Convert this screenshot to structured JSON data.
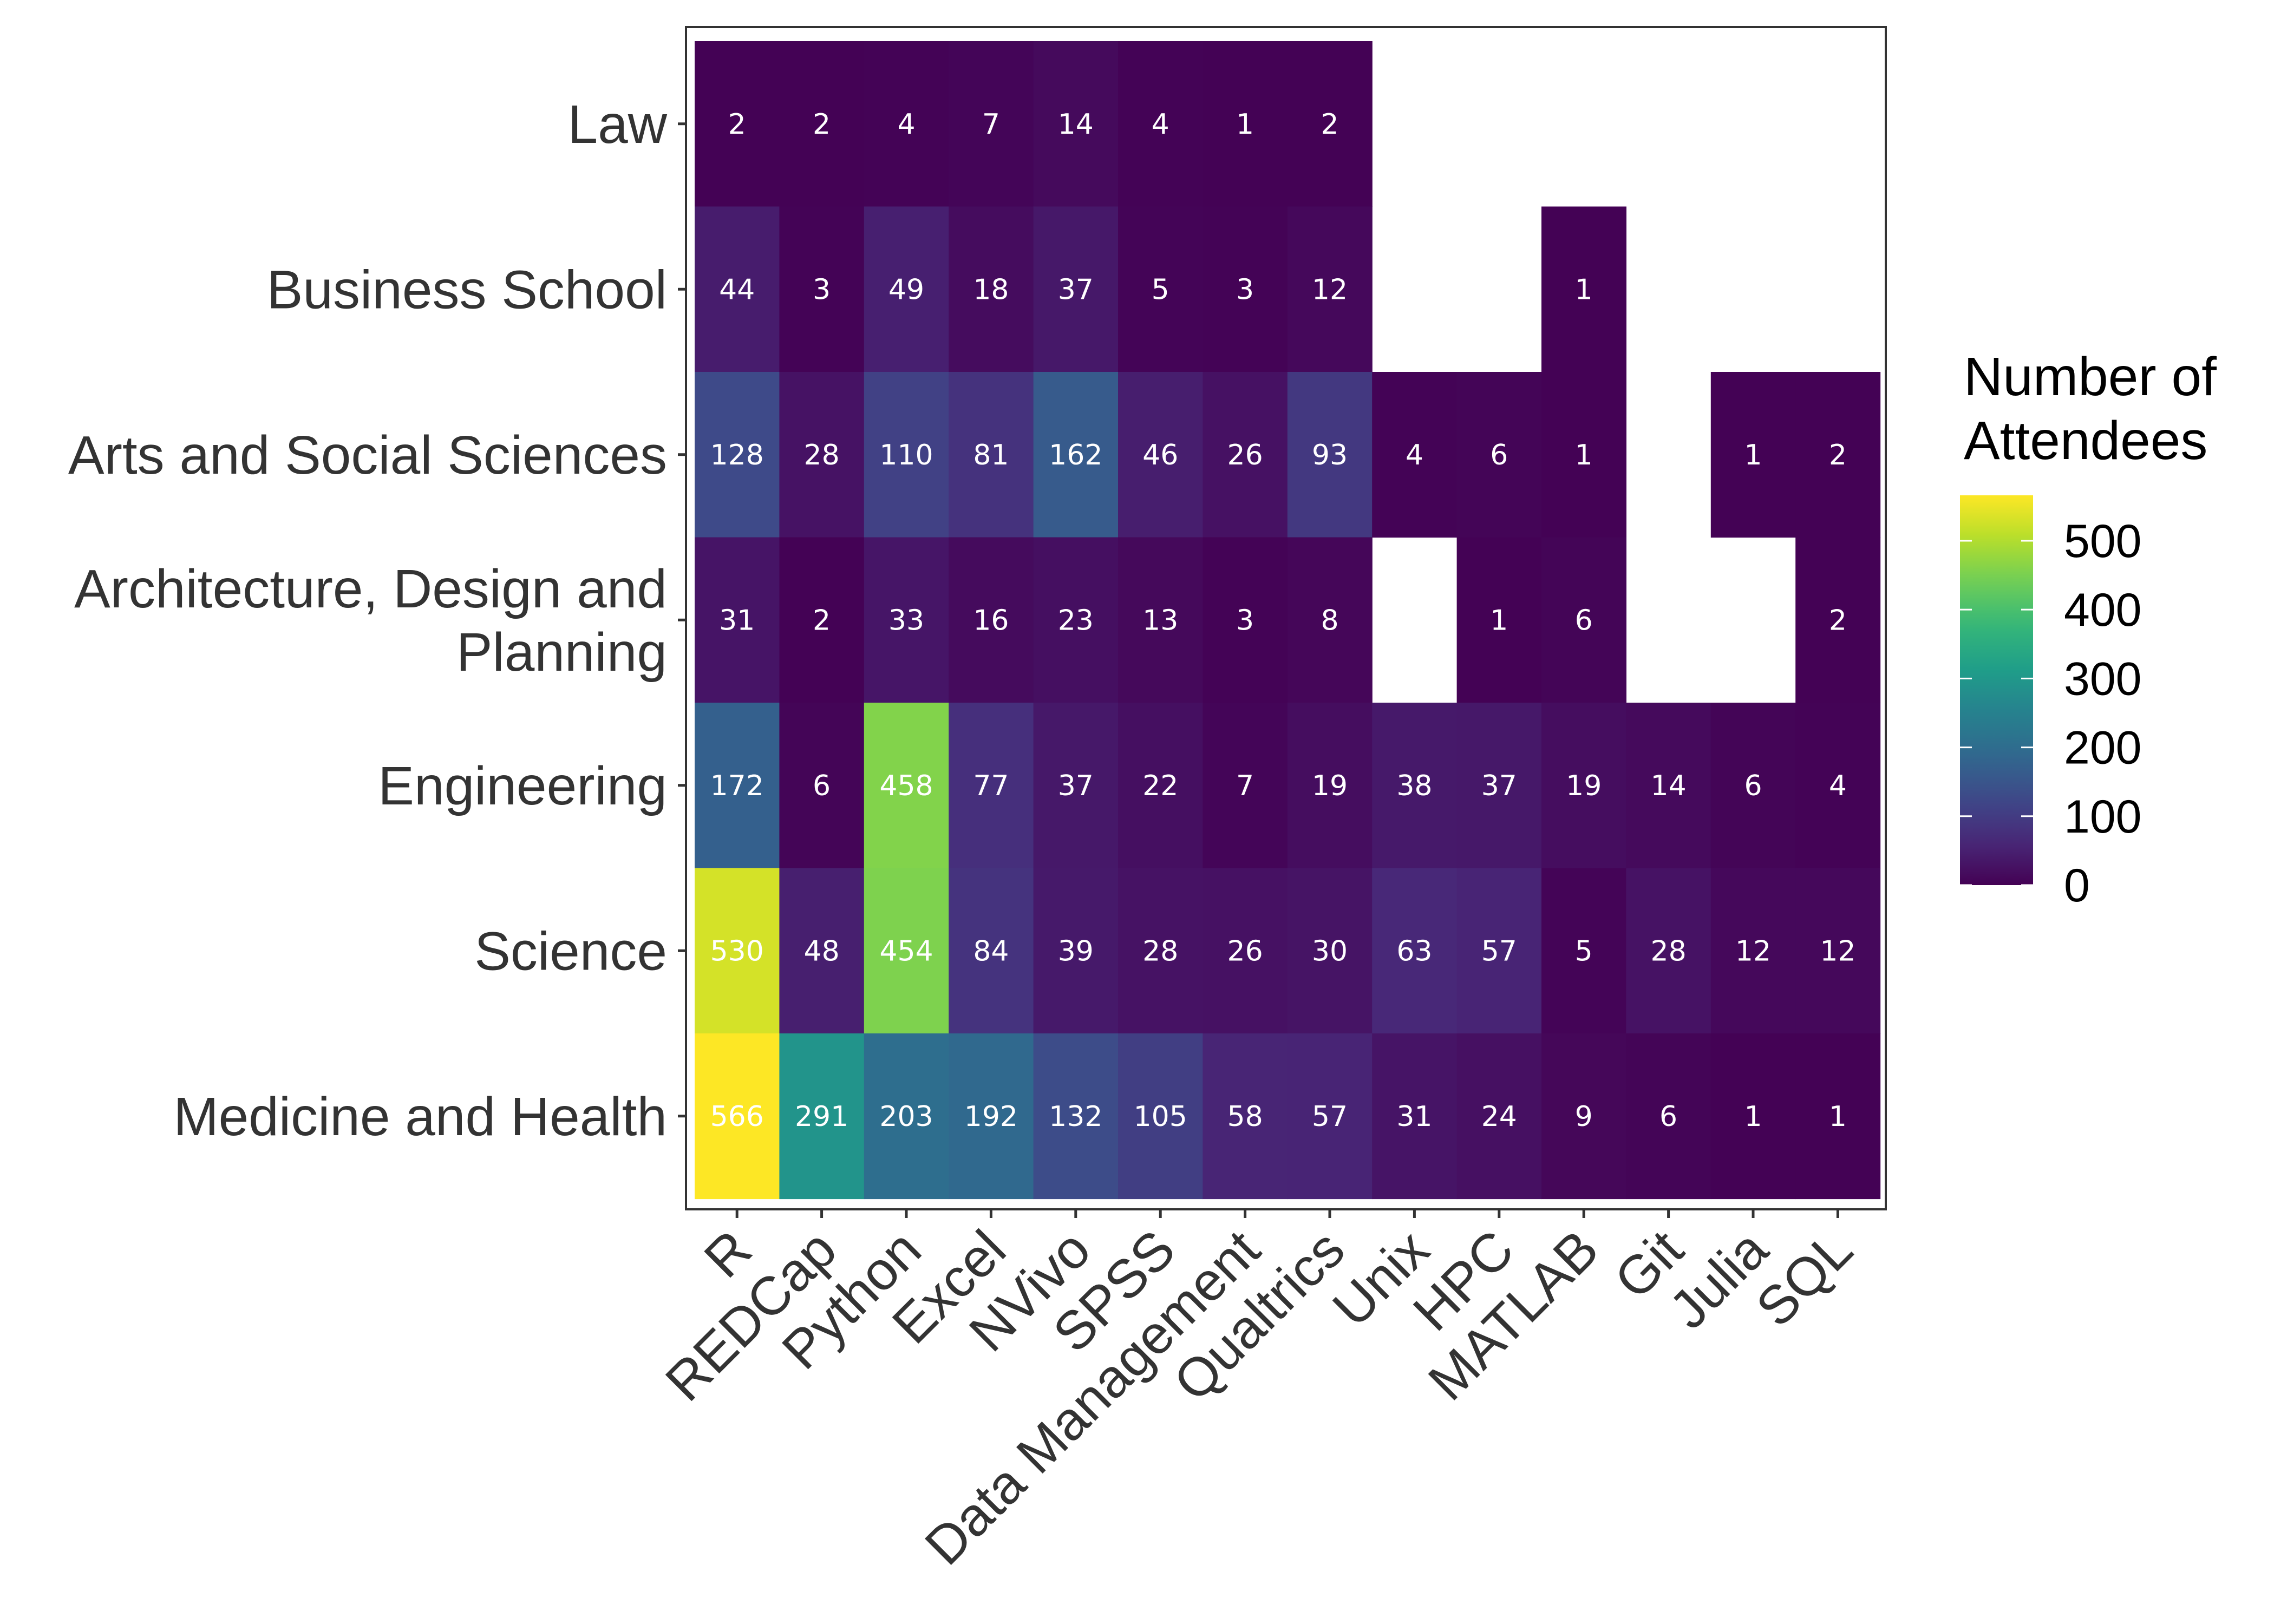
{
  "chart_data": {
    "type": "heatmap",
    "x_categories": [
      "R",
      "REDCap",
      "Python",
      "Excel",
      "NVivo",
      "SPSS",
      "Data Management",
      "Qualtrics",
      "Unix",
      "HPC",
      "MATLAB",
      "Git",
      "Julia",
      "SQL"
    ],
    "y_categories": [
      "Law",
      "Business School",
      "Arts and Social Sciences",
      "Architecture, Design and Planning",
      "Engineering",
      "Science",
      "Medicine and Health"
    ],
    "y_category_lines": [
      [
        "Law"
      ],
      [
        "Business School"
      ],
      [
        "Arts and Social Sciences"
      ],
      [
        "Architecture, Design and",
        "Planning"
      ],
      [
        "Engineering"
      ],
      [
        "Science"
      ],
      [
        "Medicine and Health"
      ]
    ],
    "values": [
      [
        2,
        2,
        4,
        7,
        14,
        4,
        1,
        2,
        null,
        null,
        null,
        null,
        null,
        null
      ],
      [
        44,
        3,
        49,
        18,
        37,
        5,
        3,
        12,
        null,
        null,
        1,
        null,
        null,
        null
      ],
      [
        128,
        28,
        110,
        81,
        162,
        46,
        26,
        93,
        4,
        6,
        1,
        null,
        1,
        2
      ],
      [
        31,
        2,
        33,
        16,
        23,
        13,
        3,
        8,
        null,
        1,
        6,
        null,
        null,
        2
      ],
      [
        172,
        6,
        458,
        77,
        37,
        22,
        7,
        19,
        38,
        37,
        19,
        14,
        6,
        4
      ],
      [
        530,
        48,
        454,
        84,
        39,
        28,
        26,
        30,
        63,
        57,
        5,
        28,
        12,
        12
      ],
      [
        566,
        291,
        203,
        192,
        132,
        105,
        58,
        57,
        31,
        24,
        9,
        6,
        1,
        1
      ]
    ],
    "legend": {
      "title_lines": [
        "Number of",
        "Attendees"
      ],
      "ticks": [
        0,
        100,
        200,
        300,
        400,
        500
      ],
      "range": [
        0,
        566
      ],
      "placement": "right"
    },
    "colorscale": "viridis",
    "colors": {
      "empty": "#ffffff",
      "cell_text": "#ffffff",
      "panel_border": "#333333"
    },
    "grid": false
  }
}
